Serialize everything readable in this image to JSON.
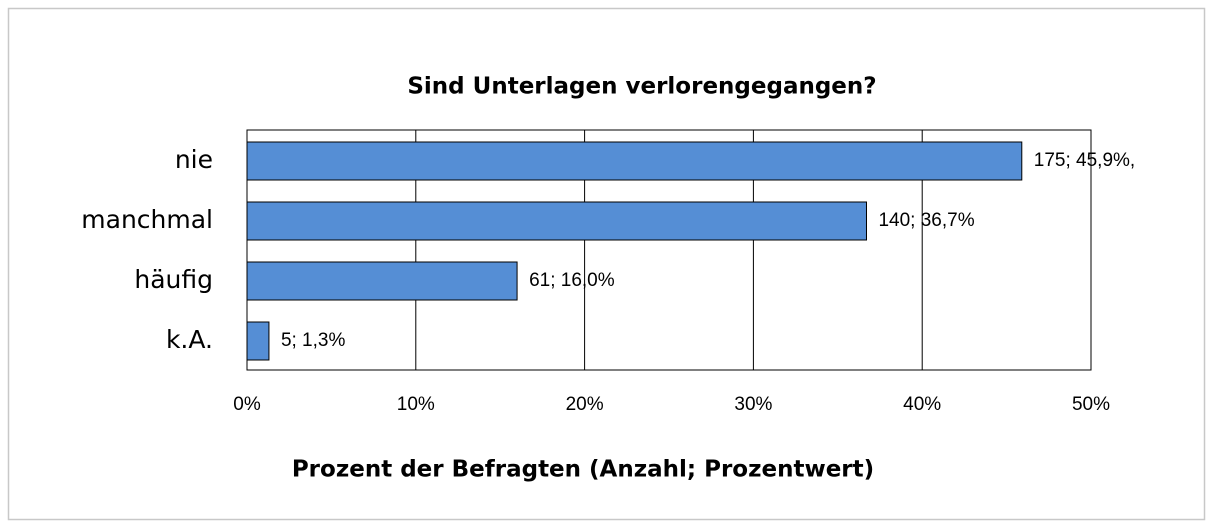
{
  "chart_data": {
    "type": "bar",
    "orientation": "horizontal",
    "title": "Sind Unterlagen verlorengegangen?",
    "xlabel": "Prozent der Befragten (Anzahl; Prozentwert)",
    "categories": [
      "nie",
      "manchmal",
      "häufig",
      "k.A."
    ],
    "values": [
      45.9,
      36.7,
      16.0,
      1.3
    ],
    "value_labels": [
      "175; 45,9%,",
      "140; 36,7%",
      "61; 16,0%",
      "5; 1,3%"
    ],
    "color": "#558ed5",
    "xlim": [
      0,
      50
    ],
    "xticks": [
      {
        "value": 0,
        "label": "0%"
      },
      {
        "value": 10,
        "label": "10%"
      },
      {
        "value": 20,
        "label": "20%"
      },
      {
        "value": 30,
        "label": "30%"
      },
      {
        "value": 40,
        "label": "40%"
      },
      {
        "value": 50,
        "label": "50%"
      }
    ],
    "grid": true
  }
}
